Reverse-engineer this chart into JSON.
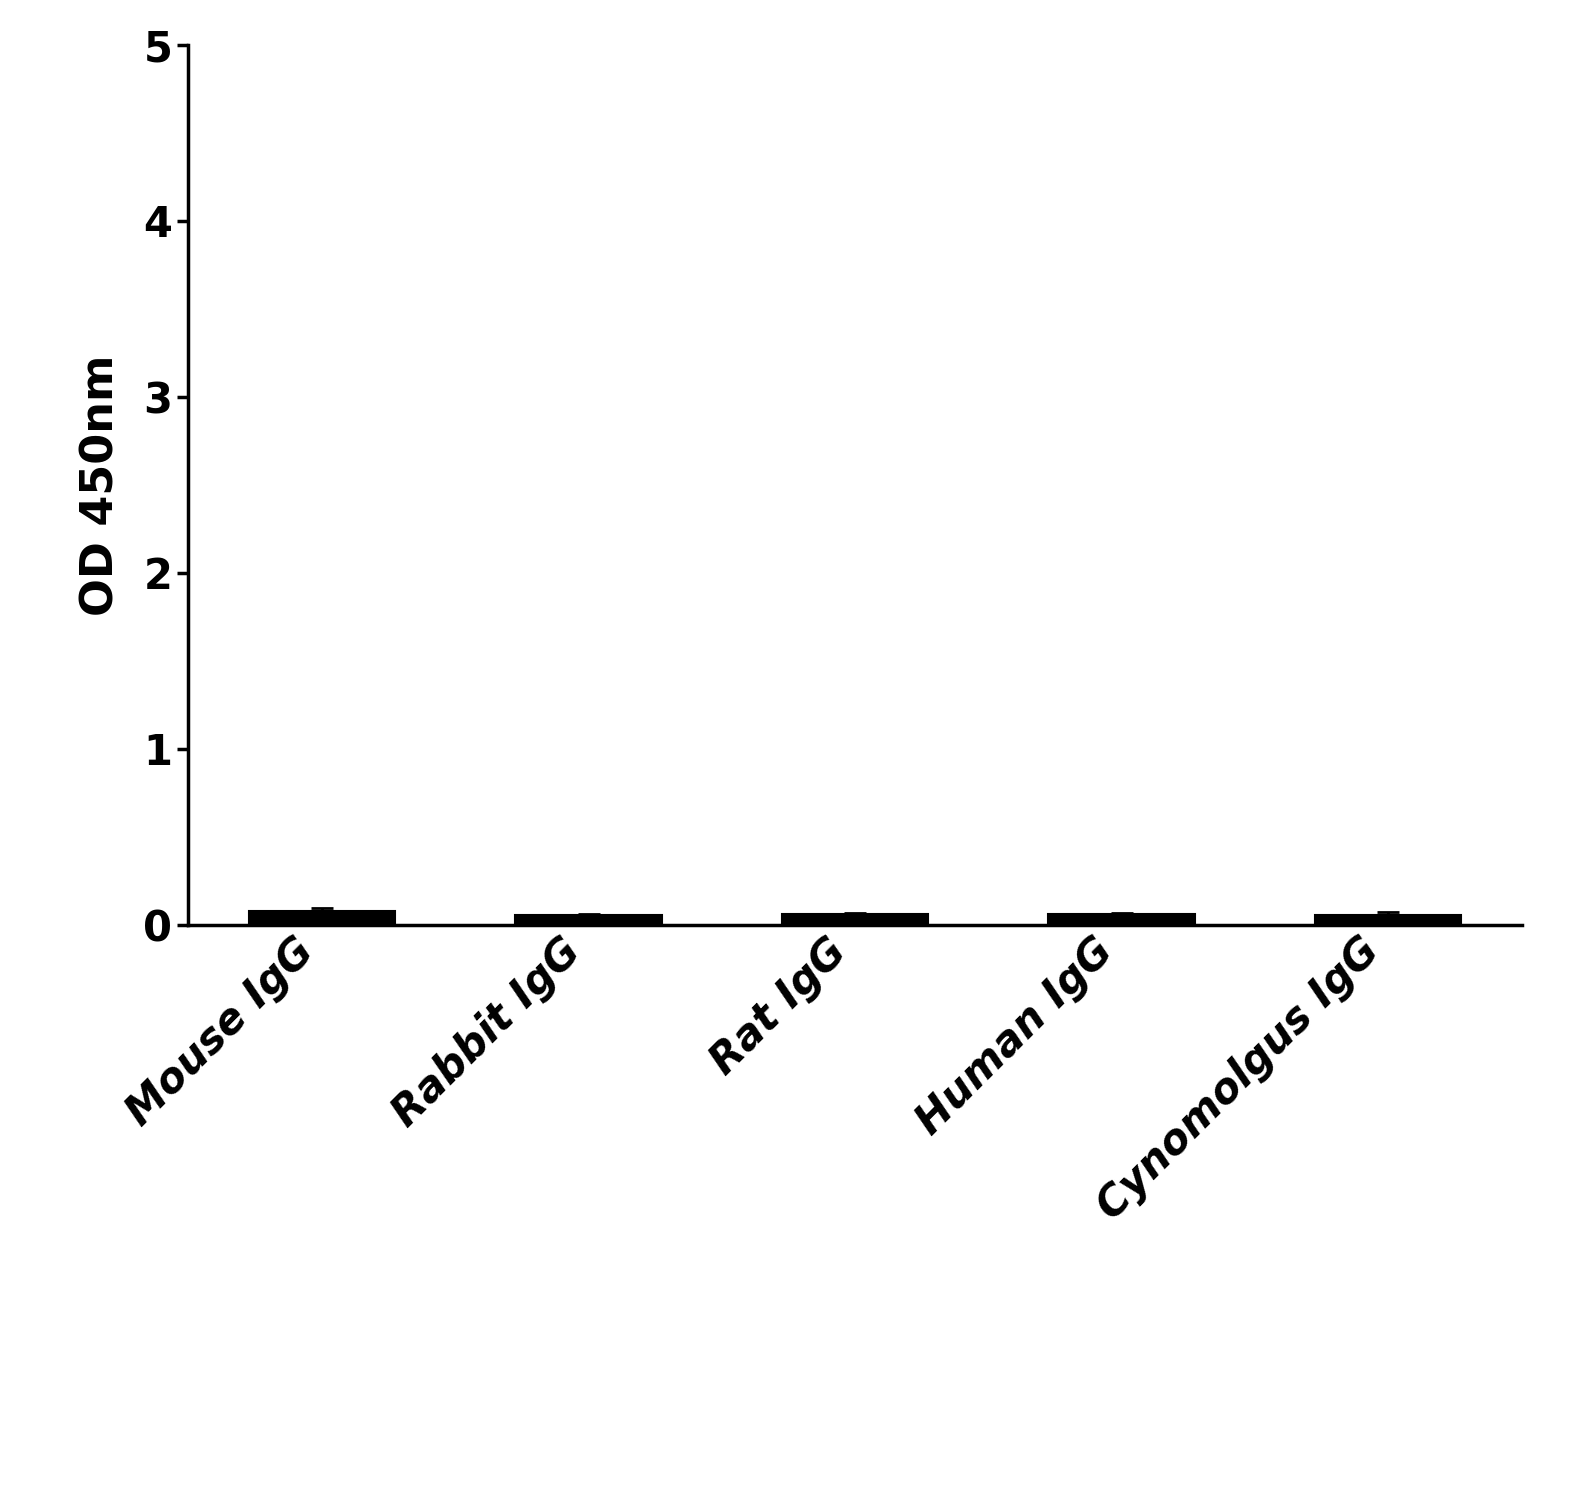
{
  "categories": [
    "Mouse IgG",
    "Rabbit IgG",
    "Rat IgG",
    "Human IgG",
    "Cynomolgus IgG"
  ],
  "values": [
    0.08,
    0.055,
    0.065,
    0.065,
    0.055
  ],
  "errors": [
    0.015,
    0.008,
    0.006,
    0.006,
    0.018
  ],
  "hatch_patterns": [
    "....",
    "- -",
    "",
    "",
    "...."
  ],
  "bar_color": "#000000",
  "ylabel": "OD 450nm",
  "ylim": [
    0,
    5
  ],
  "yticks": [
    0,
    1,
    2,
    3,
    4,
    5
  ],
  "background_color": "#ffffff",
  "ylabel_fontsize": 32,
  "tick_fontsize": 30,
  "xtick_fontsize": 30,
  "bar_width": 0.55
}
